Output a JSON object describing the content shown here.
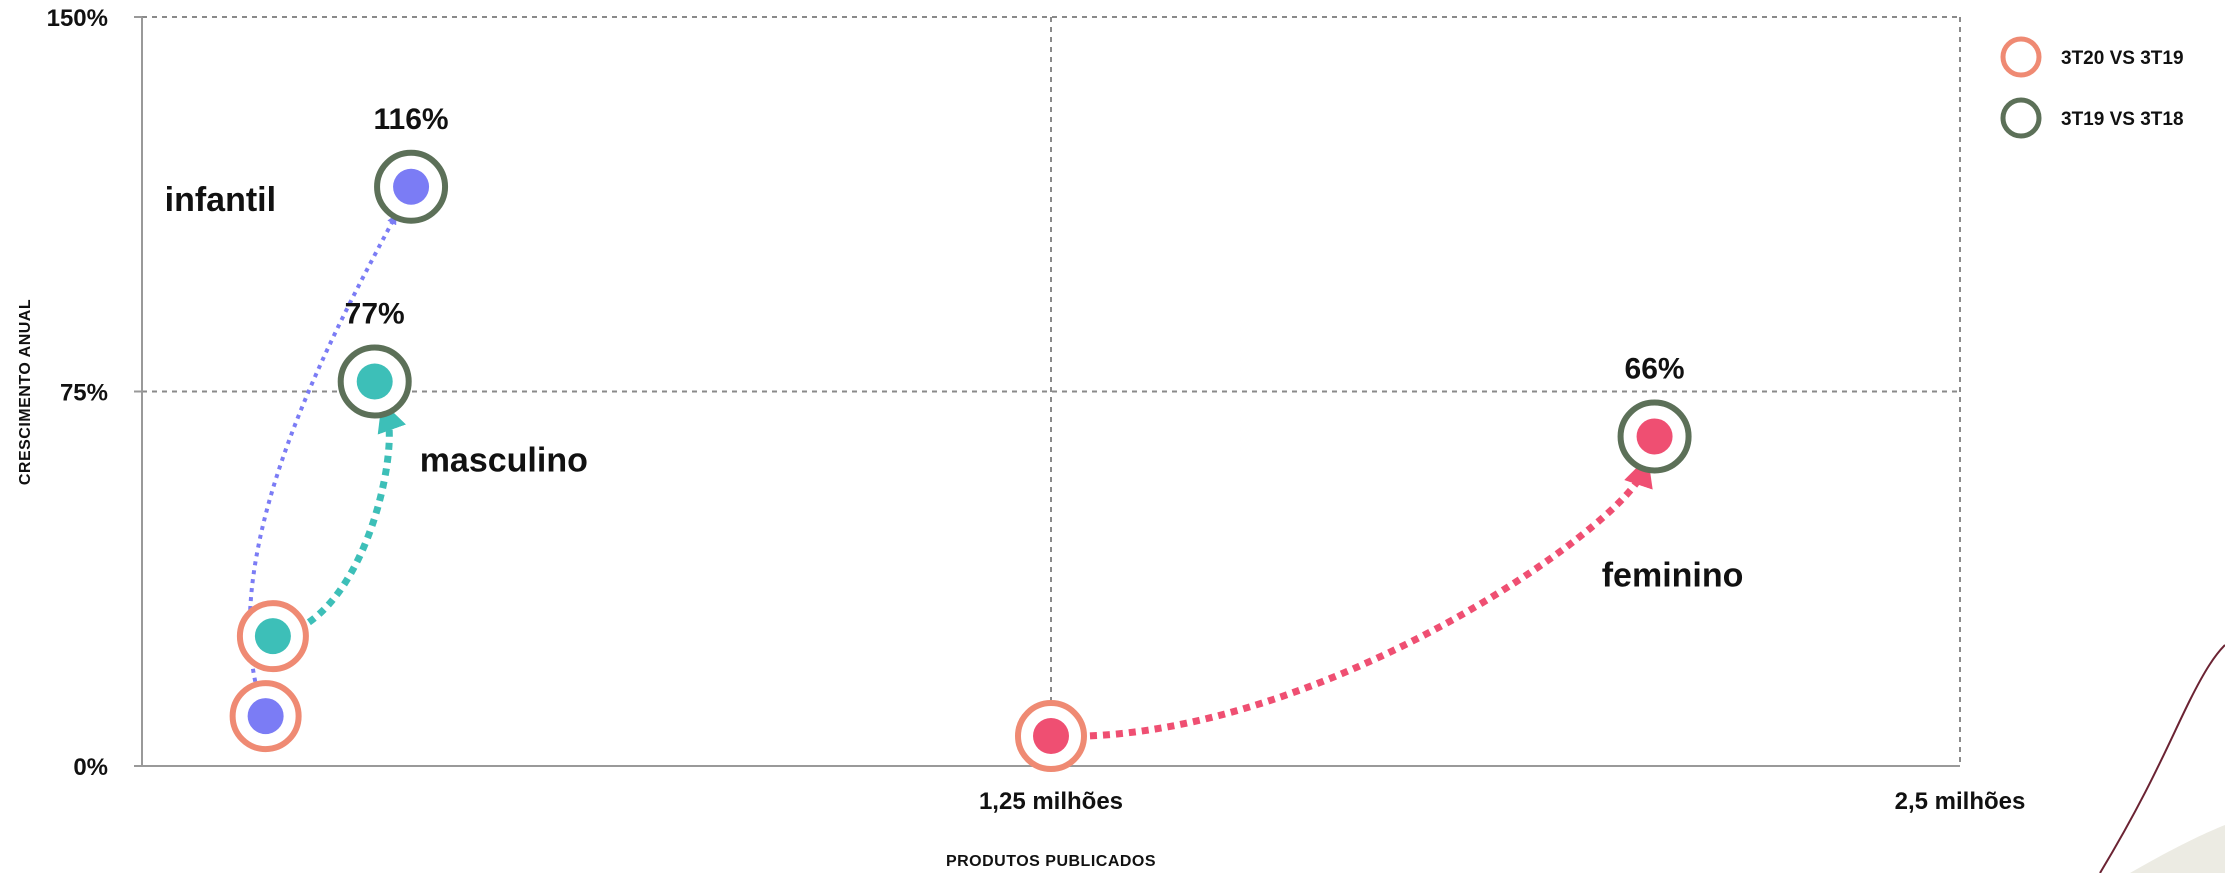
{
  "chart_data": {
    "type": "scatter",
    "xlabel": "PRODUTOS PUBLICADOS",
    "ylabel": "CRESCIMENTO ANUAL",
    "xlim": [
      0,
      2.5
    ],
    "ylim": [
      0,
      150
    ],
    "x_ticks": [
      {
        "value": 1.25,
        "label": "1,25 milhões"
      },
      {
        "value": 2.5,
        "label": "2,5 milhões"
      }
    ],
    "y_ticks": [
      {
        "value": 0,
        "label": "0%"
      },
      {
        "value": 75,
        "label": "75%"
      },
      {
        "value": 150,
        "label": "150%"
      }
    ],
    "grid": true,
    "legend_position": "top-right",
    "legend": [
      {
        "name": "3T20 VS 3T19",
        "color": "#ef8a73"
      },
      {
        "name": "3T19 VS 3T18",
        "color": "#5c7058"
      }
    ],
    "series": [
      {
        "name": "infantil",
        "color": "#7b7cf5",
        "from": {
          "x": 0.17,
          "y": 10
        },
        "to": {
          "x": 0.37,
          "y": 116
        },
        "value_label": "116%"
      },
      {
        "name": "masculino",
        "color": "#3dbfb8",
        "from": {
          "x": 0.18,
          "y": 26
        },
        "to": {
          "x": 0.32,
          "y": 77
        },
        "value_label": "77%"
      },
      {
        "name": "feminino",
        "color": "#ef4f72",
        "from": {
          "x": 1.25,
          "y": 6
        },
        "to": {
          "x": 2.08,
          "y": 66
        },
        "value_label": "66%"
      }
    ]
  }
}
